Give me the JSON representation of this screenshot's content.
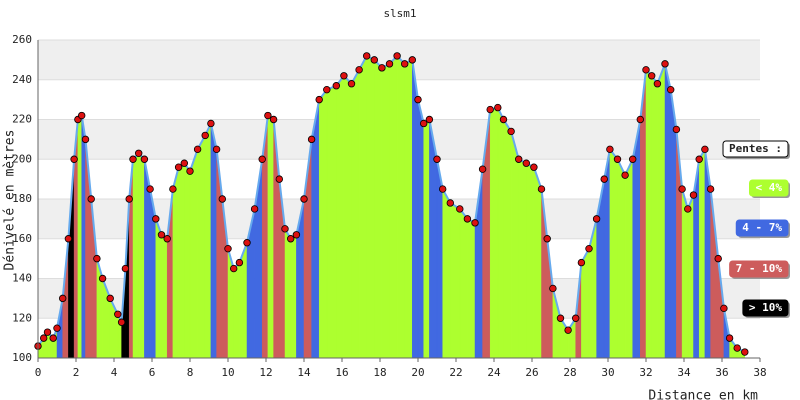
{
  "chart_data": {
    "type": "elevation-profile",
    "title": "slsm1",
    "x_label": "Distance en km",
    "y_label": "Dénivelé en mètres",
    "x": [
      0,
      0.3,
      0.5,
      0.8,
      1.0,
      1.3,
      1.6,
      1.9,
      2.1,
      2.3,
      2.5,
      2.8,
      3.1,
      3.4,
      3.8,
      4.2,
      4.4,
      4.6,
      4.8,
      5.0,
      5.3,
      5.6,
      5.9,
      6.2,
      6.5,
      6.8,
      7.1,
      7.4,
      7.7,
      8.0,
      8.4,
      8.8,
      9.1,
      9.4,
      9.7,
      10.0,
      10.3,
      10.6,
      11.0,
      11.4,
      11.8,
      12.1,
      12.4,
      12.7,
      13.0,
      13.3,
      13.6,
      14.0,
      14.4,
      14.8,
      15.2,
      15.7,
      16.1,
      16.5,
      16.9,
      17.3,
      17.7,
      18.1,
      18.5,
      18.9,
      19.3,
      19.7,
      20.0,
      20.3,
      20.6,
      21.0,
      21.3,
      21.7,
      22.2,
      22.6,
      23.0,
      23.4,
      23.8,
      24.2,
      24.5,
      24.9,
      25.3,
      25.7,
      26.1,
      26.5,
      26.8,
      27.1,
      27.5,
      27.9,
      28.3,
      28.6,
      29.0,
      29.4,
      29.8,
      30.1,
      30.5,
      30.9,
      31.3,
      31.7,
      32.0,
      32.3,
      32.6,
      33.0,
      33.3,
      33.6,
      33.9,
      34.2,
      34.5,
      34.8,
      35.1,
      35.4,
      35.8,
      36.1,
      36.4,
      36.8,
      37.2
    ],
    "values": [
      106,
      110,
      113,
      110,
      115,
      130,
      160,
      200,
      220,
      222,
      210,
      180,
      150,
      140,
      130,
      122,
      118,
      145,
      180,
      200,
      203,
      200,
      185,
      170,
      162,
      160,
      185,
      196,
      198,
      194,
      205,
      212,
      218,
      205,
      180,
      155,
      145,
      148,
      158,
      175,
      200,
      222,
      220,
      190,
      165,
      160,
      162,
      180,
      210,
      230,
      235,
      237,
      242,
      238,
      245,
      252,
      250,
      246,
      248,
      252,
      248,
      250,
      230,
      218,
      220,
      200,
      185,
      178,
      175,
      170,
      168,
      195,
      225,
      226,
      220,
      214,
      200,
      198,
      196,
      185,
      160,
      135,
      120,
      114,
      120,
      148,
      155,
      170,
      190,
      205,
      200,
      192,
      200,
      220,
      245,
      242,
      238,
      248,
      235,
      215,
      185,
      175,
      182,
      200,
      205,
      185,
      150,
      125,
      110,
      105,
      103
    ],
    "colors": [
      "#adff2f",
      "#adff2f",
      "#adff2f",
      "#adff2f",
      "#adff2f",
      "#4169e1",
      "#cd5c5c",
      "#000000",
      "#cd5c5c",
      "#adff2f",
      "#4169e1",
      "#cd5c5c",
      "#cd5c5c",
      "#adff2f",
      "#adff2f",
      "#adff2f",
      "#adff2f",
      "#000000",
      "#000000",
      "#cd5c5c",
      "#adff2f",
      "#adff2f",
      "#4169e1",
      "#4169e1",
      "#adff2f",
      "#adff2f",
      "#cd5c5c",
      "#adff2f",
      "#adff2f",
      "#adff2f",
      "#adff2f",
      "#adff2f",
      "#adff2f",
      "#4169e1",
      "#cd5c5c",
      "#cd5c5c",
      "#adff2f",
      "#adff2f",
      "#adff2f",
      "#4169e1",
      "#4169e1",
      "#cd5c5c",
      "#adff2f",
      "#cd5c5c",
      "#cd5c5c",
      "#adff2f",
      "#adff2f",
      "#4169e1",
      "#cd5c5c",
      "#4169e1",
      "#adff2f",
      "#adff2f",
      "#adff2f",
      "#adff2f",
      "#adff2f",
      "#adff2f",
      "#adff2f",
      "#adff2f",
      "#adff2f",
      "#adff2f",
      "#adff2f",
      "#adff2f",
      "#4169e1",
      "#4169e1",
      "#adff2f",
      "#4169e1",
      "#4169e1",
      "#adff2f",
      "#adff2f",
      "#adff2f",
      "#adff2f",
      "#4169e1",
      "#cd5c5c",
      "#adff2f",
      "#adff2f",
      "#adff2f",
      "#adff2f",
      "#adff2f",
      "#adff2f",
      "#adff2f",
      "#cd5c5c",
      "#cd5c5c",
      "#adff2f",
      "#adff2f",
      "#adff2f",
      "#cd5c5c",
      "#adff2f",
      "#adff2f",
      "#4169e1",
      "#4169e1",
      "#adff2f",
      "#adff2f",
      "#adff2f",
      "#4169e1",
      "#cd5c5c",
      "#adff2f",
      "#adff2f",
      "#adff2f",
      "#4169e1",
      "#4169e1",
      "#cd5c5c",
      "#adff2f",
      "#adff2f",
      "#4169e1",
      "#adff2f",
      "#4169e1",
      "#cd5c5c",
      "#cd5c5c",
      "#4169e1",
      "#adff2f",
      "#adff2f"
    ],
    "line_color": "#66aaee",
    "point_color": "#dd1111",
    "xlim": [
      0,
      38
    ],
    "xticks": [
      0,
      2,
      4,
      6,
      8,
      10,
      12,
      14,
      16,
      18,
      20,
      22,
      24,
      26,
      28,
      30,
      32,
      34,
      36,
      38
    ],
    "ylim": [
      100,
      260
    ],
    "yticks": [
      100,
      120,
      140,
      160,
      180,
      200,
      220,
      240,
      260
    ],
    "grid": true,
    "legend": {
      "title": "Pentes :",
      "position": "right",
      "entries": [
        {
          "label": "< 4%",
          "color": "#adff2f"
        },
        {
          "label": "4 - 7%",
          "color": "#4169e1"
        },
        {
          "label": "7 - 10%",
          "color": "#cd5c5c"
        },
        {
          "label": "> 10%",
          "color": "#000000"
        }
      ]
    }
  }
}
